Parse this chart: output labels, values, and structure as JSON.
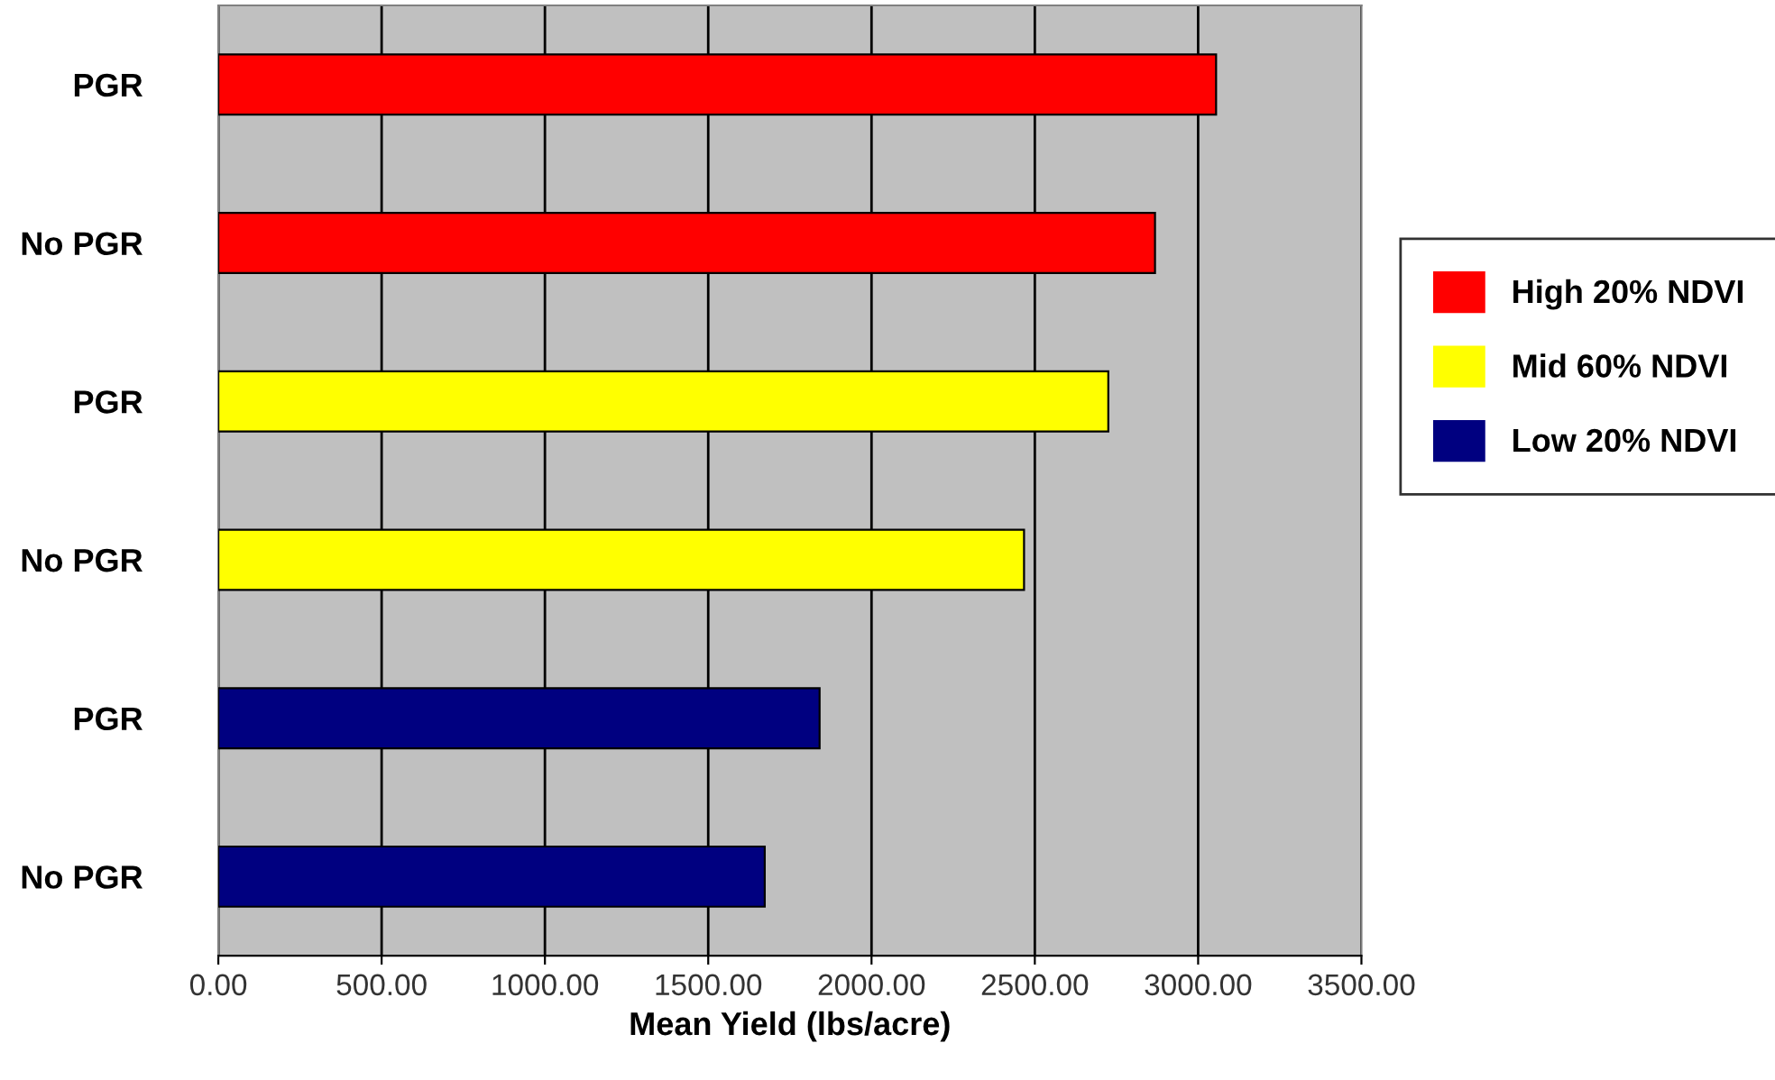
{
  "chart_data": {
    "type": "bar",
    "orientation": "horizontal",
    "xlabel": "Mean Yield (lbs/acre)",
    "categories": [
      "PGR",
      "No PGR",
      "PGR",
      "No PGR",
      "PGR",
      "No PGR"
    ],
    "series": [
      {
        "name": "High 20% NDVI",
        "color": "#ff0000",
        "values": [
          3055,
          2868,
          null,
          null,
          null,
          null
        ]
      },
      {
        "name": "Mid 60% NDVI",
        "color": "#ffff00",
        "values": [
          null,
          null,
          2725,
          2467,
          null,
          null
        ]
      },
      {
        "name": "Low 20% NDVI",
        "color": "#000080",
        "values": [
          null,
          null,
          null,
          null,
          1841,
          1673
        ]
      }
    ],
    "xlim": [
      0,
      3500
    ],
    "xticks": [
      {
        "value": 0,
        "label": "0.00"
      },
      {
        "value": 500,
        "label": "500.00"
      },
      {
        "value": 1000,
        "label": "1000.00"
      },
      {
        "value": 1500,
        "label": "1500.00"
      },
      {
        "value": 2000,
        "label": "2000.00"
      },
      {
        "value": 2500,
        "label": "2500.00"
      },
      {
        "value": 3000,
        "label": "3000.00"
      },
      {
        "value": 3500,
        "label": "3500.00"
      }
    ],
    "grid": "x",
    "legend": "right"
  }
}
